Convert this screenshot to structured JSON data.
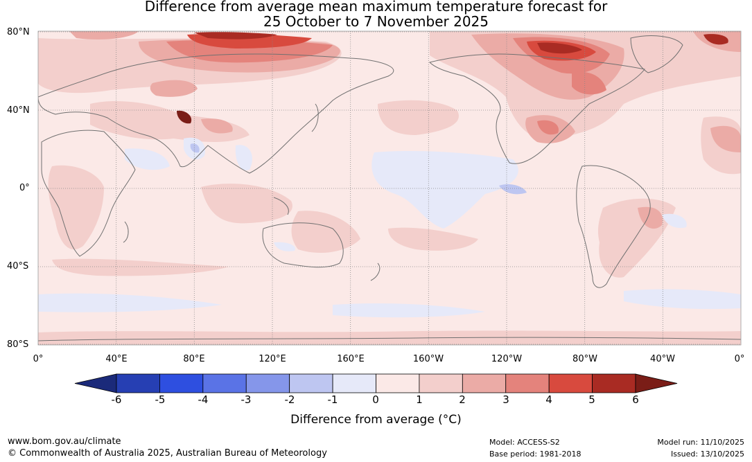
{
  "title": {
    "line1": "Difference from average mean maximum temperature forecast for",
    "line2": "25 October to 7 November 2025"
  },
  "map": {
    "lat_labels": [
      "80°N",
      "40°N",
      "0°",
      "40°S",
      "80°S"
    ],
    "lon_labels": [
      "0°",
      "40°E",
      "80°E",
      "120°E",
      "160°E",
      "160°W",
      "120°W",
      "80°W",
      "40°W",
      "0°"
    ],
    "base_color": "#fbe9e7",
    "grid_color": "#888888",
    "coast_color": "#707070"
  },
  "colorbar": {
    "ticks": [
      "-6",
      "-5",
      "-4",
      "-3",
      "-2",
      "-1",
      "0",
      "1",
      "2",
      "3",
      "4",
      "5",
      "6"
    ],
    "label": "Difference from average (°C)",
    "colors": [
      "#1b2a7a",
      "#263fb3",
      "#2e4fe0",
      "#5a73e6",
      "#8596ea",
      "#bec6f1",
      "#e6e9f9",
      "#fbe9e7",
      "#f3cfcc",
      "#ebaba6",
      "#e4837c",
      "#d84a3e",
      "#a92b23",
      "#7a1d17"
    ]
  },
  "footer": {
    "website": "www.bom.gov.au/climate",
    "copyright": "© Commonwealth of Australia 2025, Australian Bureau of Meteorology",
    "model": "Model: ACCESS-S2",
    "base_period": "Base period: 1981-2018",
    "model_run": "Model run: 11/10/2025",
    "issued": "Issued: 13/10/2025"
  }
}
